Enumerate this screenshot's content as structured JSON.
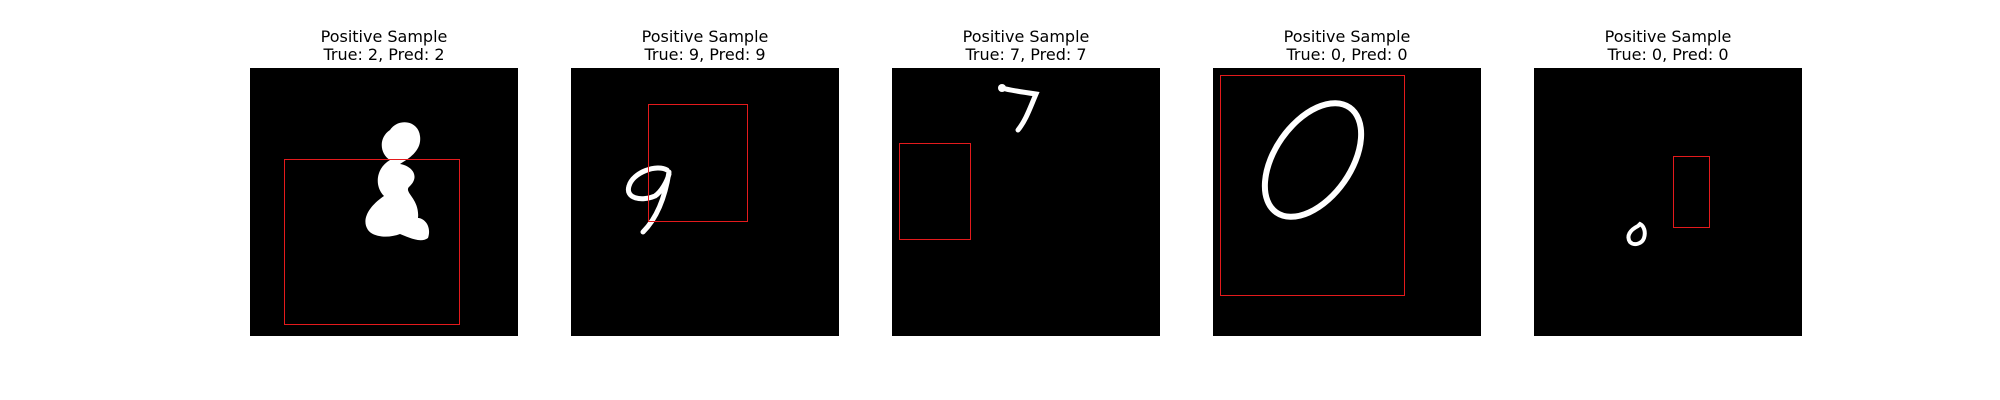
{
  "figure": {
    "background_color": "#ffffff",
    "image_background_color": "#000000",
    "digit_color": "#ffffff",
    "bbox_color": "#e41a1c"
  },
  "panels": [
    {
      "label_line1": "Positive Sample",
      "label_line2": "True: 2, Pred: 2",
      "true_label": 2,
      "pred_label": 2
    },
    {
      "label_line1": "Positive Sample",
      "label_line2": "True: 9, Pred: 9",
      "true_label": 9,
      "pred_label": 9
    },
    {
      "label_line1": "Positive Sample",
      "label_line2": "True: 7, Pred: 7",
      "true_label": 7,
      "pred_label": 7
    },
    {
      "label_line1": "Positive Sample",
      "label_line2": "True: 0, Pred: 0",
      "true_label": 0,
      "pred_label": 0
    },
    {
      "label_line1": "Positive Sample",
      "label_line2": "True: 0, Pred: 0",
      "true_label": 0,
      "pred_label": 0
    }
  ]
}
